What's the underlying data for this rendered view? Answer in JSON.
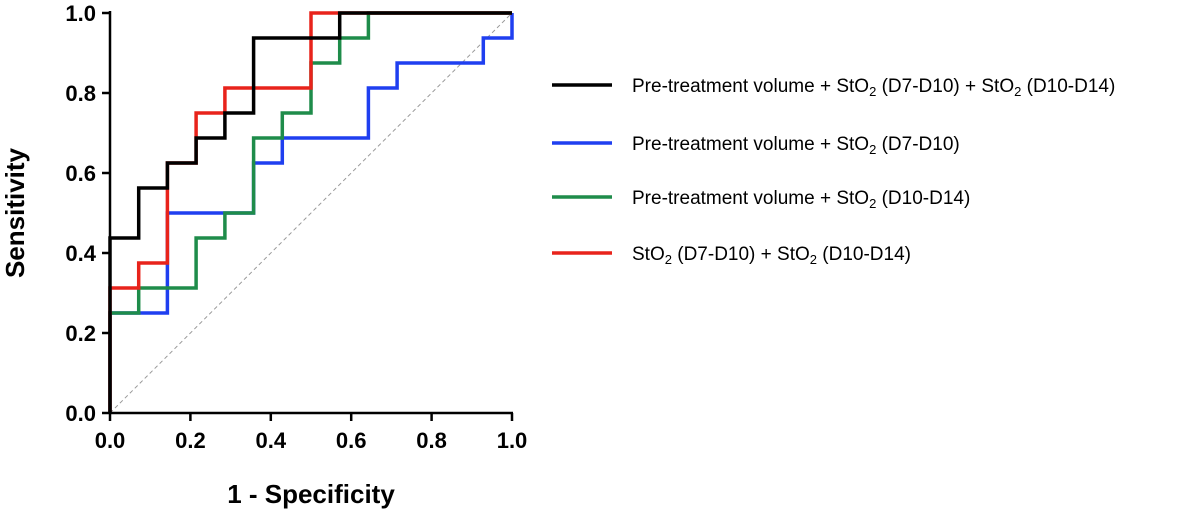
{
  "chart_data": {
    "type": "line",
    "title": "",
    "xlabel": "1 - Specificity",
    "ylabel": "Sensitivity",
    "xlim": [
      0,
      1
    ],
    "ylim": [
      0,
      1
    ],
    "x_ticks": [
      "0.0",
      "0.2",
      "0.4",
      "0.6",
      "0.8",
      "1.0"
    ],
    "y_ticks": [
      "0.0",
      "0.2",
      "0.4",
      "0.6",
      "0.8",
      "1.0"
    ],
    "grid": false,
    "legend_position": "right",
    "reference_line": {
      "from": [
        0,
        0
      ],
      "to": [
        1,
        1
      ],
      "style": "dashed",
      "color": "#999999"
    },
    "series": [
      {
        "name": "Pre-treatment volume + StO2 (D7-D10) + StO2 (D10-D14)",
        "legend": [
          {
            "t": "Pre-treatment volume + StO"
          },
          {
            "t": "2",
            "sub": true
          },
          {
            "t": " (D7-D10) + StO"
          },
          {
            "t": "2",
            "sub": true
          },
          {
            "t": " (D10-D14)"
          }
        ],
        "color": "#000000",
        "points": [
          [
            0,
            0
          ],
          [
            0,
            0.4375
          ],
          [
            0.0714,
            0.4375
          ],
          [
            0.0714,
            0.5625
          ],
          [
            0.1429,
            0.5625
          ],
          [
            0.1429,
            0.625
          ],
          [
            0.2143,
            0.625
          ],
          [
            0.2143,
            0.6875
          ],
          [
            0.2857,
            0.6875
          ],
          [
            0.2857,
            0.75
          ],
          [
            0.3571,
            0.75
          ],
          [
            0.3571,
            0.9375
          ],
          [
            0.5714,
            0.9375
          ],
          [
            0.5714,
            1
          ],
          [
            1,
            1
          ]
        ]
      },
      {
        "name": "Pre-treatment volume + StO2 (D7-D10)",
        "legend": [
          {
            "t": "Pre-treatment volume + StO"
          },
          {
            "t": "2",
            "sub": true
          },
          {
            "t": " (D7-D10)"
          }
        ],
        "color": "#1f3ff0",
        "points": [
          [
            0,
            0
          ],
          [
            0,
            0.25
          ],
          [
            0.1429,
            0.25
          ],
          [
            0.1429,
            0.5
          ],
          [
            0.3571,
            0.5
          ],
          [
            0.3571,
            0.625
          ],
          [
            0.4286,
            0.625
          ],
          [
            0.4286,
            0.6875
          ],
          [
            0.6429,
            0.6875
          ],
          [
            0.6429,
            0.8125
          ],
          [
            0.7143,
            0.8125
          ],
          [
            0.7143,
            0.875
          ],
          [
            0.9286,
            0.875
          ],
          [
            0.9286,
            0.9375
          ],
          [
            1,
            0.9375
          ],
          [
            1,
            1
          ]
        ]
      },
      {
        "name": "Pre-treatment volume + StO2 (D10-D14)",
        "legend": [
          {
            "t": "Pre-treatment volume + StO"
          },
          {
            "t": "2",
            "sub": true
          },
          {
            "t": " (D10-D14)"
          }
        ],
        "color": "#1e8c4a",
        "points": [
          [
            0,
            0
          ],
          [
            0,
            0.25
          ],
          [
            0.0714,
            0.25
          ],
          [
            0.0714,
            0.3125
          ],
          [
            0.2143,
            0.3125
          ],
          [
            0.2143,
            0.4375
          ],
          [
            0.2857,
            0.4375
          ],
          [
            0.2857,
            0.5
          ],
          [
            0.3571,
            0.5
          ],
          [
            0.3571,
            0.6875
          ],
          [
            0.4286,
            0.6875
          ],
          [
            0.4286,
            0.75
          ],
          [
            0.5,
            0.75
          ],
          [
            0.5,
            0.875
          ],
          [
            0.5714,
            0.875
          ],
          [
            0.5714,
            0.9375
          ],
          [
            0.6429,
            0.9375
          ],
          [
            0.6429,
            1
          ],
          [
            1,
            1
          ]
        ]
      },
      {
        "name": "StO2 (D7-D10) + StO2 (D10-D14)",
        "legend": [
          {
            "t": "StO"
          },
          {
            "t": "2",
            "sub": true
          },
          {
            "t": " (D7-D10)  + StO"
          },
          {
            "t": "2",
            "sub": true
          },
          {
            "t": " (D10-D14)"
          }
        ],
        "color": "#e8231b",
        "points": [
          [
            0,
            0
          ],
          [
            0,
            0.3125
          ],
          [
            0.0714,
            0.3125
          ],
          [
            0.0714,
            0.375
          ],
          [
            0.1429,
            0.375
          ],
          [
            0.1429,
            0.625
          ],
          [
            0.2143,
            0.625
          ],
          [
            0.2143,
            0.75
          ],
          [
            0.2857,
            0.75
          ],
          [
            0.2857,
            0.8125
          ],
          [
            0.5,
            0.8125
          ],
          [
            0.5,
            1
          ],
          [
            1,
            1
          ]
        ]
      }
    ]
  }
}
